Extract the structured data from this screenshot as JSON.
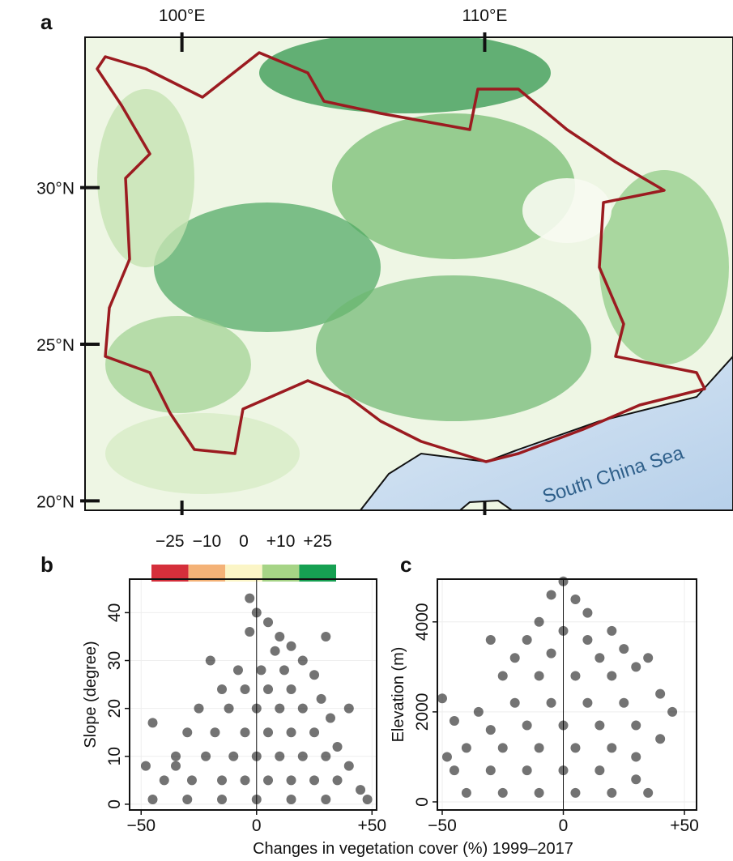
{
  "chart_data": [
    {
      "type": "map",
      "title": "a",
      "xlim": [
        96.8,
        118.2
      ],
      "ylim": [
        19.7,
        34.8
      ],
      "xticks": [
        {
          "value": 100,
          "label": "100°E"
        },
        {
          "value": 110,
          "label": "110°E"
        }
      ],
      "yticks": [
        {
          "value": 30,
          "label": "30°N"
        },
        {
          "value": 25,
          "label": "25°N"
        },
        {
          "value": 20,
          "label": "20°N"
        }
      ],
      "annotation": "South China Sea",
      "legend": {
        "labels": [
          "−25",
          "−10",
          "0",
          "+10",
          "+25"
        ],
        "colors": [
          "#d52f3b",
          "#f4b277",
          "#fbf5c6",
          "#a6d486",
          "#16a052"
        ]
      }
    },
    {
      "type": "scatter",
      "title": "b",
      "ylabel": "Slope (degree)",
      "xlabel": "Changes in vegetation cover (%) 1999–2017",
      "xlim": [
        -55,
        52
      ],
      "ylim": [
        -1.2,
        47
      ],
      "color": "#000000",
      "xticks": [
        {
          "value": -50,
          "label": "−50"
        },
        0,
        {
          "value": 50,
          "label": "+50"
        }
      ],
      "yticks": [
        0,
        10,
        20,
        30,
        40
      ],
      "x": [
        0,
        5,
        -3,
        10,
        15,
        8,
        20,
        -8,
        2,
        12,
        25,
        -15,
        -5,
        5,
        15,
        28,
        -25,
        -12,
        0,
        10,
        20,
        32,
        -30,
        -18,
        -5,
        5,
        15,
        25,
        35,
        -35,
        -22,
        -10,
        0,
        10,
        20,
        30,
        40,
        -40,
        -28,
        -15,
        -5,
        5,
        15,
        25,
        35,
        45,
        -45,
        -30,
        -15,
        0,
        15,
        30,
        48,
        -45,
        -35,
        -48,
        -20,
        30,
        40,
        -3
      ],
      "y": [
        40,
        38,
        36,
        35,
        33,
        32,
        30,
        28,
        28,
        28,
        27,
        24,
        24,
        24,
        24,
        22,
        20,
        20,
        20,
        20,
        20,
        18,
        15,
        15,
        15,
        15,
        15,
        15,
        12,
        10,
        10,
        10,
        10,
        10,
        10,
        10,
        8,
        5,
        5,
        5,
        5,
        5,
        5,
        5,
        5,
        3,
        1,
        1,
        1,
        1,
        1,
        1,
        1,
        17,
        8,
        8,
        30,
        35,
        20,
        43
      ]
    },
    {
      "type": "scatter",
      "title": "c",
      "ylabel": "Elevation (m)",
      "xlim": [
        -52,
        55
      ],
      "ylim": [
        -180,
        4950
      ],
      "color": "#000000",
      "xticks": [
        {
          "value": -50,
          "label": "−50"
        },
        0,
        {
          "value": 50,
          "label": "+50"
        }
      ],
      "yticks": [
        0,
        2000,
        4000
      ],
      "x": [
        0,
        -5,
        5,
        10,
        -10,
        20,
        -15,
        0,
        10,
        25,
        -20,
        -5,
        15,
        30,
        -25,
        -10,
        5,
        20,
        40,
        -35,
        -20,
        -5,
        10,
        25,
        45,
        -45,
        -30,
        -15,
        0,
        15,
        30,
        -40,
        -25,
        -10,
        5,
        20,
        30,
        -45,
        -30,
        -15,
        0,
        15,
        30,
        -40,
        -25,
        -10,
        5,
        20,
        35,
        -50,
        -48,
        35,
        -30,
        40
      ],
      "y": [
        4900,
        4600,
        4500,
        4200,
        4000,
        3800,
        3600,
        3800,
        3600,
        3400,
        3200,
        3300,
        3200,
        3000,
        2800,
        2800,
        2800,
        2800,
        2400,
        2000,
        2200,
        2200,
        2200,
        2200,
        2000,
        1800,
        1600,
        1700,
        1700,
        1700,
        1700,
        1200,
        1200,
        1200,
        1200,
        1200,
        1000,
        700,
        700,
        700,
        700,
        700,
        500,
        200,
        200,
        200,
        200,
        200,
        200,
        2300,
        1000,
        3200,
        3600,
        1400
      ]
    }
  ]
}
